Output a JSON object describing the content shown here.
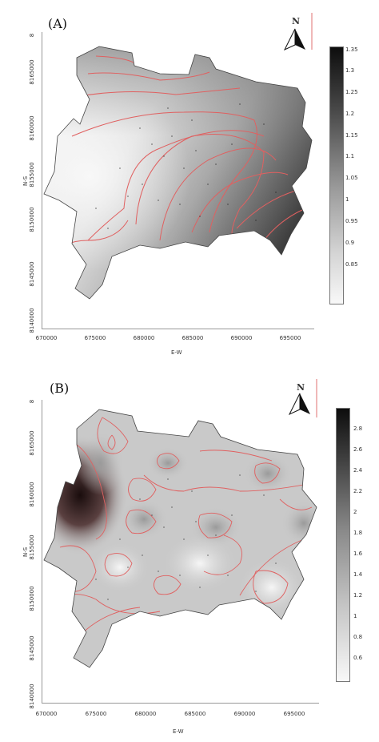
{
  "panels": [
    {
      "label": "(A)",
      "ylabel": "N-S",
      "xlabel": "E-W",
      "north": "N",
      "xticks": [
        "670000",
        "675000",
        "680000",
        "685000",
        "690000",
        "695000"
      ],
      "yticks": [
        "8140000",
        "8145000",
        "8150000",
        "8155000",
        "8160000",
        "8165000",
        "8"
      ],
      "colorbar": [
        "1.35",
        "1.3",
        "1.25",
        "1.2",
        "1.15",
        "1.1",
        "1.05",
        "1",
        "0.95",
        "0.9",
        "0.85"
      ]
    },
    {
      "label": "(B)",
      "ylabel": "N-S",
      "xlabel": "E-W",
      "north": "N",
      "xticks": [
        "670000",
        "675000",
        "680000",
        "685000",
        "690000",
        "695000"
      ],
      "yticks": [
        "8140000",
        "8145000",
        "8150000",
        "8155000",
        "8160000",
        "8165000",
        "8"
      ],
      "colorbar": [
        "2.8",
        "2.6",
        "2.4",
        "2.2",
        "2",
        "1.8",
        "1.6",
        "1.4",
        "1.2",
        "1",
        "0.8",
        "0.6"
      ]
    }
  ],
  "colors": {
    "contour": "#e06060",
    "outline": "#444444",
    "high": "#111111",
    "low": "#f6f6f6"
  },
  "icons": [
    "north-arrow-icon"
  ]
}
